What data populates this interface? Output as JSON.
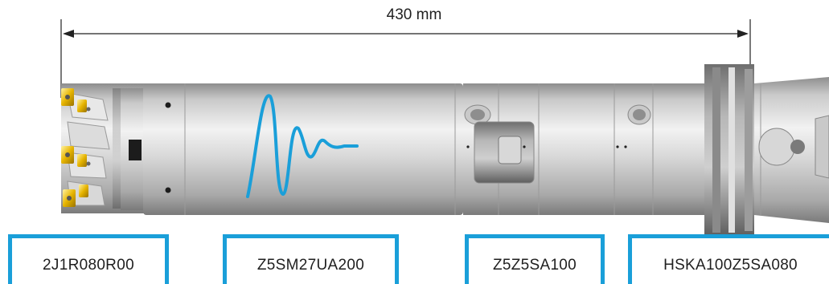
{
  "dimension": {
    "label": "430 mm"
  },
  "components": [
    {
      "code": "2J1R080R00"
    },
    {
      "code": "Z5SM27UA200"
    },
    {
      "code": "Z5Z5SA100"
    },
    {
      "code": "HSKA100Z5SA080"
    }
  ],
  "colors": {
    "accent": "#1a9fd9",
    "insert": "#e6b400",
    "metal": "#b4b4b4",
    "text": "#1f1f1f"
  },
  "icons": {
    "vibration": "vibration-damping-wave-icon"
  }
}
